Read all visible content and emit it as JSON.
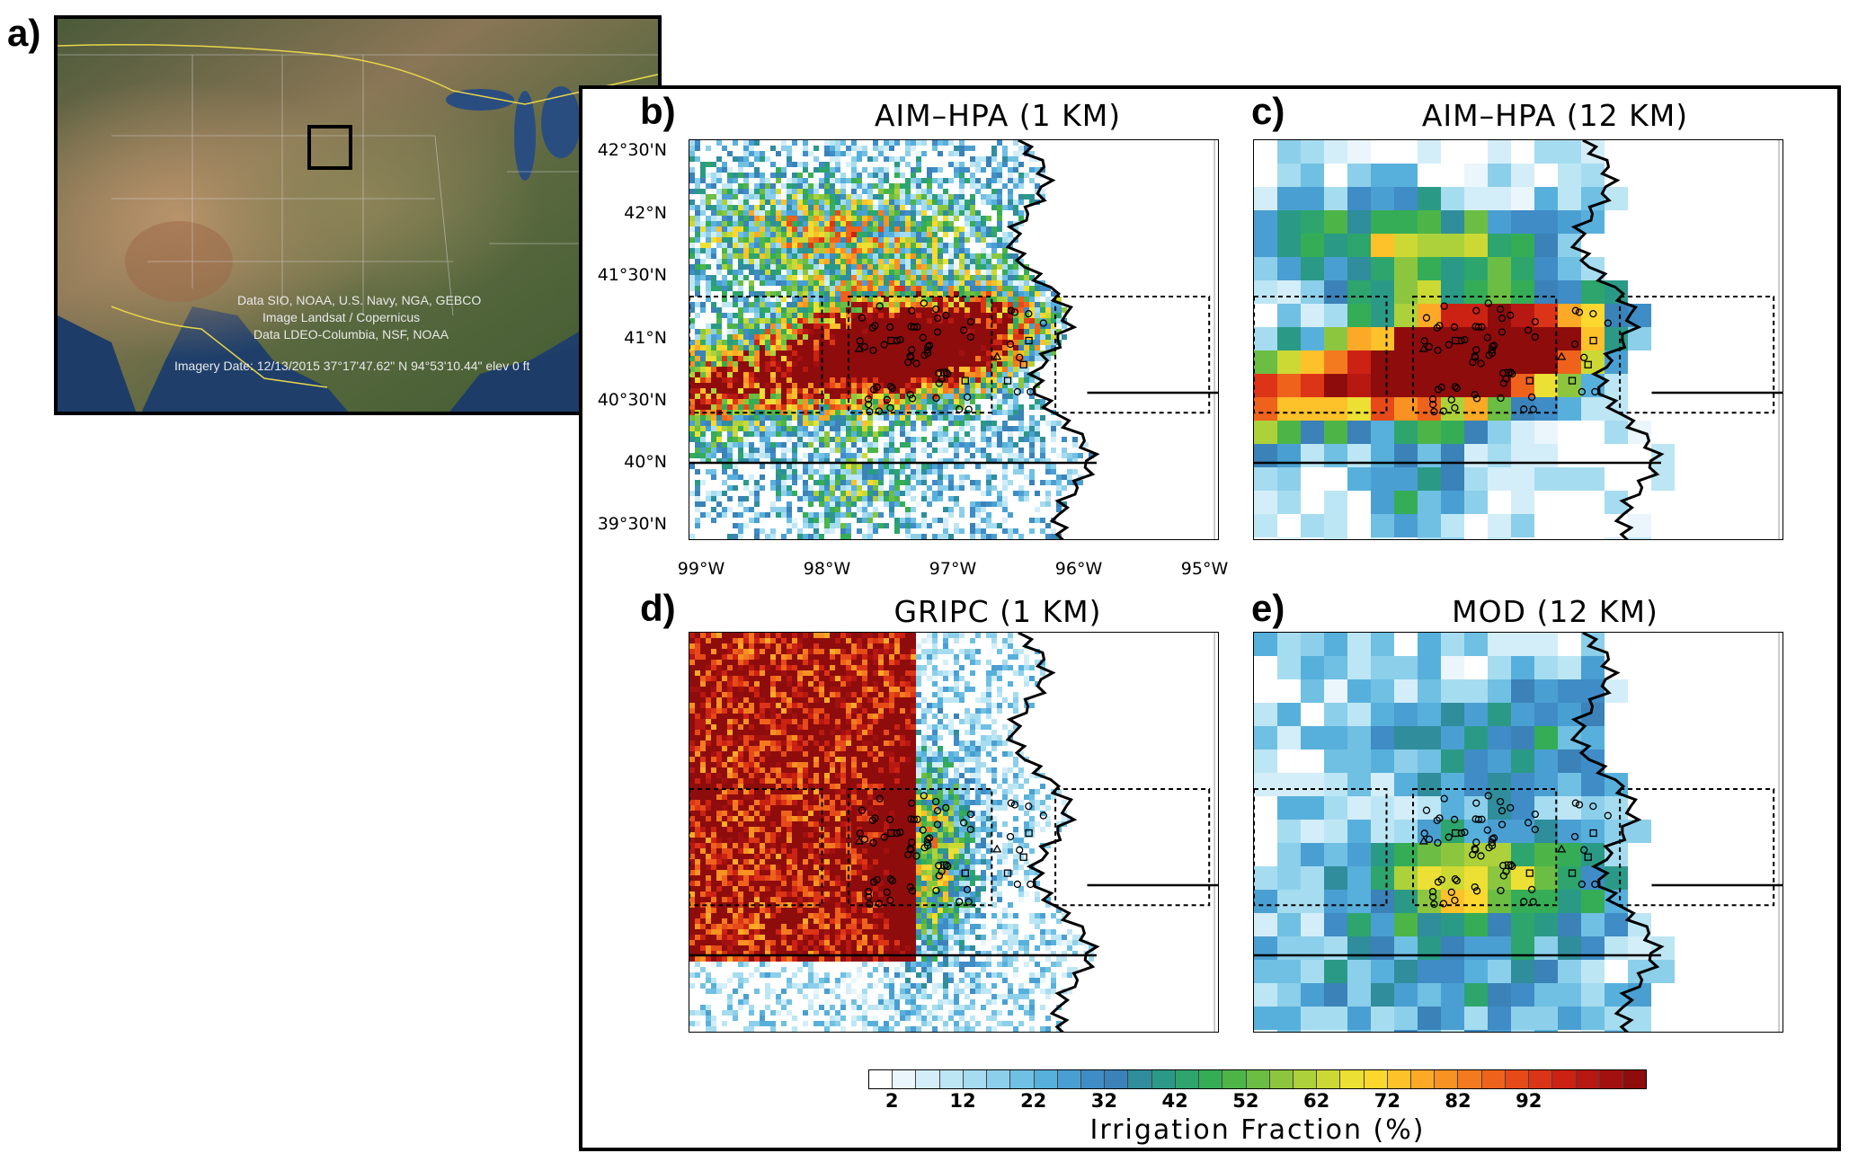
{
  "figure_labels": {
    "a": "a)",
    "b": "b)",
    "c": "c)",
    "d": "d)",
    "e": "e)"
  },
  "panel_titles": {
    "b": "AIM–HPA (1 KM)",
    "c": "AIM–HPA (12 KM)",
    "d": "GRIPC (1 KM)",
    "e": "MOD (12 KM)"
  },
  "satellite": {
    "attribution_lines": [
      "Data SIO, NOAA, U.S. Navy, NGA, GEBCO",
      "Image Landsat / Copernicus",
      "Data LDEO-Columbia, NSF, NOAA"
    ],
    "imagery_line": "Imagery Date: 12/13/2015  37°17'47.62\" N  94°53'10.44\" elev 0 ft",
    "highlight_box": "study-region"
  },
  "axes": {
    "lat_ticks": [
      "42°30'N",
      "42°N",
      "41°30'N",
      "41°N",
      "40°30'N",
      "40°N",
      "39°30'N"
    ],
    "lon_ticks": [
      "99°W",
      "98°W",
      "97°W",
      "96°W",
      "95°W"
    ]
  },
  "colorbar": {
    "title": "Irrigation Fraction (%)",
    "tick_labels": [
      "2",
      "12",
      "22",
      "32",
      "42",
      "52",
      "62",
      "72",
      "82",
      "92"
    ],
    "colors": [
      "#ffffff",
      "#eaf6fb",
      "#d3eef8",
      "#bde6f4",
      "#a6dcf0",
      "#8ccfea",
      "#6fc0e3",
      "#57b0dc",
      "#4a9fd2",
      "#3f8cc6",
      "#3a82b8",
      "#2f8d9c",
      "#2a9a86",
      "#2da56d",
      "#35ad56",
      "#4db548",
      "#6bbd43",
      "#8cc63f",
      "#acd13a",
      "#ccd935",
      "#ebe033",
      "#fcd82f",
      "#fdc12a",
      "#fba927",
      "#f79223",
      "#f47a20",
      "#ef621c",
      "#e64a19",
      "#dc3416",
      "#cc2214",
      "#b81812",
      "#a31010",
      "#8e0c0c"
    ]
  },
  "chart_data": {
    "type": "heatmap",
    "variable": "Irrigation Fraction (%)",
    "color_range": [
      0,
      100
    ],
    "lat_range": [
      "39°30'N",
      "42°30'N"
    ],
    "lon_range": [
      "99°W",
      "95°W"
    ],
    "panels": [
      {
        "id": "b",
        "title": "AIM–HPA (1 KM)",
        "resolution": "1 KM"
      },
      {
        "id": "c",
        "title": "AIM–HPA (12 KM)",
        "resolution": "12 KM"
      },
      {
        "id": "d",
        "title": "GRIPC (1 KM)",
        "resolution": "1 KM"
      },
      {
        "id": "e",
        "title": "MOD (12 KM)",
        "resolution": "12 KM"
      }
    ],
    "site_markers": [
      "circle",
      "square",
      "triangle"
    ]
  }
}
